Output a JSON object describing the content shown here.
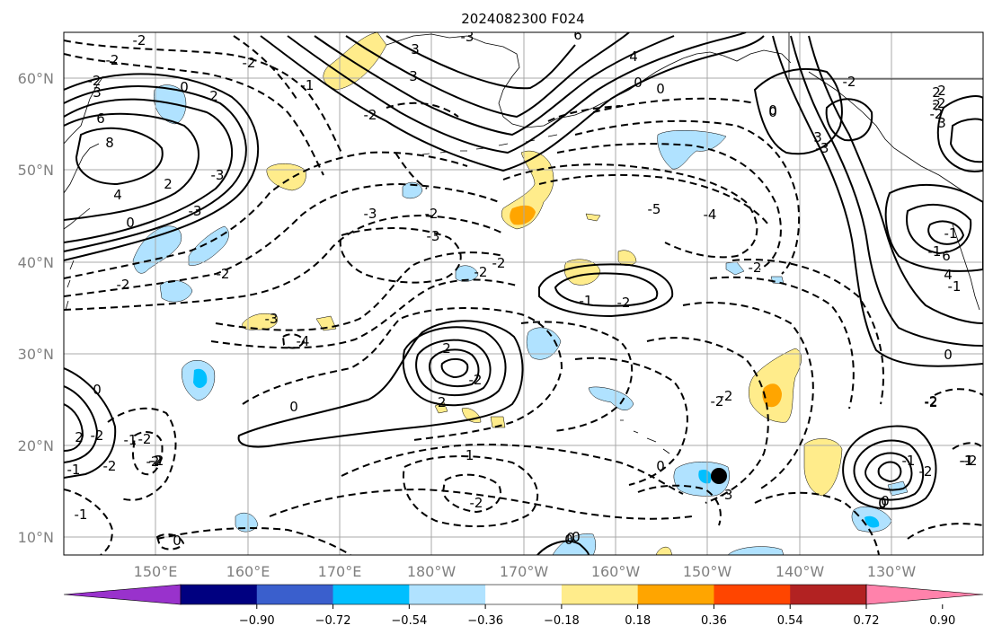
{
  "title": "2024082300 F024",
  "map": {
    "lat_labels": [
      "60°N",
      "50°N",
      "40°N",
      "30°N",
      "20°N",
      "10°N"
    ],
    "lon_labels": [
      "150°E",
      "160°E",
      "170°E",
      "180°W",
      "170°W",
      "160°W",
      "150°W",
      "140°W",
      "130°W"
    ],
    "lon_range": [
      "140°E",
      "120°W"
    ],
    "lat_range": [
      "8°N",
      "65°N"
    ],
    "grid": true,
    "marker": {
      "lon": "-150.7",
      "lat": "16.5",
      "color": "#000000"
    }
  },
  "contour_labels": [
    "-2",
    "-2",
    "-3",
    "3",
    "6",
    "4",
    "3",
    "-2",
    "2",
    "-2",
    "0",
    "0",
    "0",
    "-3",
    "-3",
    "3",
    "-1",
    "6",
    "8",
    "4",
    "0",
    "2",
    "-2",
    "0",
    "-4",
    "-5",
    "-3",
    "-2",
    "-2",
    "-3",
    "-4",
    "-3",
    "-2",
    "-2",
    "-2",
    "-2",
    "-2",
    "-2",
    "0",
    "-3",
    "-1",
    "-1",
    "0",
    "-1",
    "-2",
    "-2",
    "-2",
    "-1",
    "-2",
    "2",
    "0",
    "-1",
    "-2",
    "-1",
    "2",
    "-2",
    "0",
    "-2",
    "-2",
    "-1",
    "-2",
    "-1",
    "0",
    "-2",
    "-2",
    "-2",
    "0",
    "2",
    "-1",
    "0",
    "-1",
    "0",
    "-2",
    "2",
    "3",
    "0",
    "0",
    "3",
    "-3",
    "-2",
    "6",
    "4",
    "0",
    "-2",
    "-1",
    "-2",
    "-2",
    "0",
    "2"
  ],
  "colorbar": {
    "ticks": [
      "−0.90",
      "−0.72",
      "−0.54",
      "−0.36",
      "−0.18",
      "0.18",
      "0.36",
      "0.54",
      "0.72",
      "0.90"
    ],
    "colors": [
      "#9932cc",
      "#000080",
      "#3a5fcd",
      "#00bfff",
      "#b0e2ff",
      "#ffffff",
      "#ffec8b",
      "#ffa500",
      "#ff4500",
      "#b22222",
      "#ff82ab"
    ],
    "extend": "both"
  }
}
